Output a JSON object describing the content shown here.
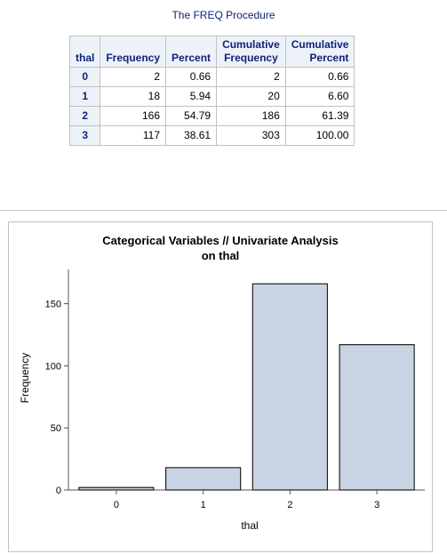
{
  "procedure_title": "The FREQ Procedure",
  "table": {
    "headers": [
      [
        "thal"
      ],
      [
        "Frequency"
      ],
      [
        "Percent"
      ],
      [
        "Cumulative",
        "Frequency"
      ],
      [
        "Cumulative",
        "Percent"
      ]
    ],
    "rows": [
      [
        "0",
        "2",
        "0.66",
        "2",
        "0.66"
      ],
      [
        "1",
        "18",
        "5.94",
        "20",
        "6.60"
      ],
      [
        "2",
        "166",
        "54.79",
        "186",
        "61.39"
      ],
      [
        "3",
        "117",
        "38.61",
        "303",
        "100.00"
      ]
    ]
  },
  "chart_data": {
    "type": "bar",
    "title": "Categorical Variables // Univariate Analysis",
    "subtitle": "on thal",
    "xlabel": "thal",
    "ylabel": "Frequency",
    "categories": [
      "0",
      "1",
      "2",
      "3"
    ],
    "values": [
      2,
      18,
      166,
      117
    ],
    "ylim": [
      0,
      174
    ],
    "yticks": [
      0,
      50,
      100,
      150
    ],
    "grid": false,
    "bar_color": "#c9d4e4"
  }
}
